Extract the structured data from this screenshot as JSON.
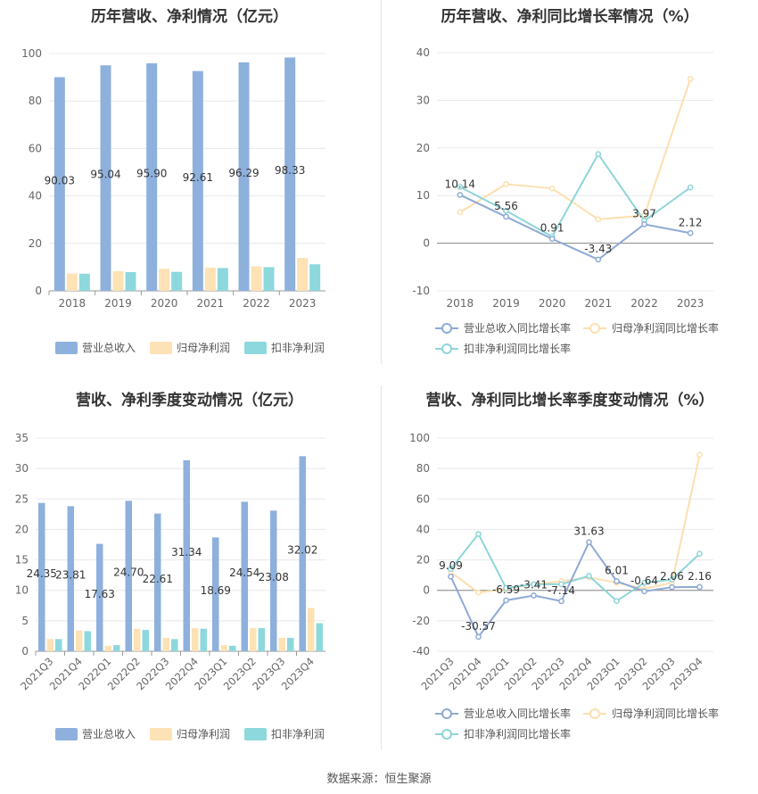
{
  "source": "数据来源：恒生聚源",
  "colors": {
    "revenue": "#8eb0dd",
    "net_profit": "#fde2b6",
    "deducted_profit": "#8dd8dc",
    "revenue_line": "#8eaad6",
    "net_line": "#fddfaf",
    "deducted_line": "#8ed5d9"
  },
  "chart_data": [
    {
      "type": "bar",
      "title": "历年营收、净利情况（亿元）",
      "categories": [
        "2018",
        "2019",
        "2020",
        "2021",
        "2022",
        "2023"
      ],
      "ylim": [
        0,
        100
      ],
      "yticks": [
        0,
        20,
        40,
        60,
        80,
        100
      ],
      "grid": true,
      "legend": "bottom",
      "series": [
        {
          "name": "营业总收入",
          "values": [
            90.03,
            95.04,
            95.9,
            92.61,
            96.29,
            98.33
          ],
          "labels": [
            "90.03",
            "95.04",
            "95.90",
            "92.61",
            "96.29",
            "98.33"
          ]
        },
        {
          "name": "归母净利润",
          "values": [
            7.3,
            8.3,
            9.3,
            9.8,
            10.3,
            13.9
          ]
        },
        {
          "name": "扣非净利润",
          "values": [
            7.2,
            7.9,
            8.0,
            9.6,
            10.0,
            11.2
          ]
        }
      ]
    },
    {
      "type": "line",
      "title": "历年营收、净利同比增长率情况（%）",
      "categories": [
        "2018",
        "2019",
        "2020",
        "2021",
        "2022",
        "2023"
      ],
      "ylim": [
        -10,
        40
      ],
      "yticks": [
        -10,
        0,
        10,
        20,
        30,
        40
      ],
      "grid": true,
      "legend": "bottom",
      "series": [
        {
          "name": "营业总收入同比增长率",
          "values": [
            10.14,
            5.56,
            0.91,
            -3.43,
            3.97,
            2.12
          ],
          "labels": [
            "10.14",
            "5.56",
            "0.91",
            "-3.43",
            "3.97",
            "2.12"
          ]
        },
        {
          "name": "归母净利润同比增长率",
          "values": [
            6.5,
            12.4,
            11.5,
            5.0,
            5.8,
            34.5
          ]
        },
        {
          "name": "扣非净利润同比增长率",
          "values": [
            11.8,
            6.8,
            1.4,
            18.7,
            4.7,
            11.7
          ]
        }
      ]
    },
    {
      "type": "bar",
      "title": "营收、净利季度变动情况（亿元）",
      "categories": [
        "2021Q3",
        "2021Q4",
        "2022Q1",
        "2022Q2",
        "2022Q3",
        "2022Q4",
        "2023Q1",
        "2023Q2",
        "2023Q3",
        "2023Q4"
      ],
      "ylim": [
        0,
        35
      ],
      "yticks": [
        0,
        5,
        10,
        15,
        20,
        25,
        30,
        35
      ],
      "grid": true,
      "legend": "bottom",
      "series": [
        {
          "name": "营业总收入",
          "values": [
            24.35,
            23.81,
            17.63,
            24.7,
            22.61,
            31.34,
            18.69,
            24.54,
            23.08,
            32.02
          ],
          "labels": [
            "24.35",
            "23.81",
            "17.63",
            "24.70",
            "22.61",
            "31.34",
            "18.69",
            "24.54",
            "23.08",
            "32.02"
          ]
        },
        {
          "name": "归母净利润",
          "values": [
            2.0,
            3.4,
            0.9,
            3.7,
            2.2,
            3.8,
            1.0,
            3.8,
            2.2,
            7.1
          ]
        },
        {
          "name": "扣非净利润",
          "values": [
            2.0,
            3.3,
            1.0,
            3.5,
            2.0,
            3.7,
            0.9,
            3.8,
            2.2,
            4.6
          ]
        }
      ]
    },
    {
      "type": "line",
      "title": "营收、净利同比增长率季度变动情况（%）",
      "categories": [
        "2021Q3",
        "2021Q4",
        "2022Q1",
        "2022Q2",
        "2022Q3",
        "2022Q4",
        "2023Q1",
        "2023Q2",
        "2023Q3",
        "2023Q4"
      ],
      "ylim": [
        -40,
        100
      ],
      "yticks": [
        -40,
        -20,
        0,
        20,
        40,
        60,
        80,
        100
      ],
      "grid": true,
      "legend": "bottom",
      "series": [
        {
          "name": "营业总收入同比增长率",
          "values": [
            9.09,
            -30.57,
            -6.59,
            -3.41,
            -7.14,
            31.63,
            6.01,
            -0.64,
            2.06,
            2.16
          ],
          "labels": [
            "9.09",
            "-30.57",
            "-6.59",
            "-3.41",
            "-7.14",
            "31.63",
            "6.01",
            "-0.64",
            "2.06",
            "2.16"
          ]
        },
        {
          "name": "归母净利润同比增长率",
          "values": [
            12.0,
            -1.5,
            1.0,
            4.0,
            6.0,
            8.5,
            5.0,
            1.0,
            5.0,
            89.0
          ]
        },
        {
          "name": "扣非净利润同比增长率",
          "values": [
            14.0,
            37.0,
            1.5,
            4.0,
            4.0,
            9.5,
            -7.0,
            5.0,
            7.0,
            24.0
          ]
        }
      ]
    }
  ]
}
